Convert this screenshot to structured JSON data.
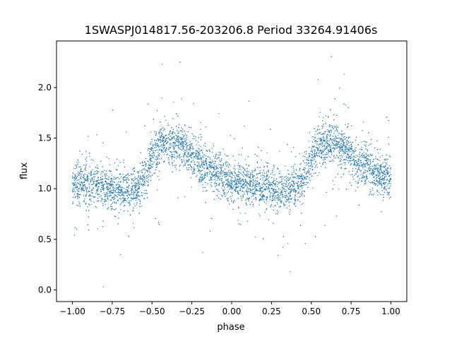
{
  "chart_data": {
    "type": "scatter",
    "title": "1SWASPJ014817.56-203206.8 Period 33264.91406s",
    "xlabel": "phase",
    "ylabel": "flux",
    "xlim": [
      -1.1,
      1.1
    ],
    "ylim": [
      -0.115,
      2.46
    ],
    "x_ticks": [
      -1.0,
      -0.75,
      -0.5,
      -0.25,
      0.0,
      0.25,
      0.5,
      0.75,
      1.0
    ],
    "x_tick_labels": [
      "−1.00",
      "−0.75",
      "−0.50",
      "−0.25",
      "0.00",
      "0.25",
      "0.50",
      "0.75",
      "1.00"
    ],
    "y_ticks": [
      0.0,
      0.5,
      1.0,
      1.5,
      2.0
    ],
    "y_tick_labels": [
      "0.0",
      "0.5",
      "1.0",
      "1.5",
      "2.0"
    ],
    "grid": false,
    "series": [
      {
        "color": "#1f77b4",
        "marker": "dot",
        "x": [
          -1.0,
          -0.9,
          -0.8,
          -0.7,
          -0.6,
          -0.55,
          -0.5,
          -0.45,
          -0.4,
          -0.35,
          -0.3,
          -0.25,
          -0.2,
          -0.1,
          0.0,
          0.1,
          0.2,
          0.3,
          0.4,
          0.45,
          0.5,
          0.55,
          0.6,
          0.65,
          0.7,
          0.75,
          0.8,
          0.9,
          1.0
        ],
        "y": [
          1.05,
          1.04,
          1.02,
          0.98,
          1.0,
          1.1,
          1.32,
          1.42,
          1.46,
          1.45,
          1.4,
          1.33,
          1.26,
          1.15,
          1.08,
          1.04,
          1.01,
          0.98,
          1.0,
          1.1,
          1.32,
          1.42,
          1.46,
          1.45,
          1.4,
          1.33,
          1.26,
          1.15,
          1.08
        ]
      }
    ]
  }
}
